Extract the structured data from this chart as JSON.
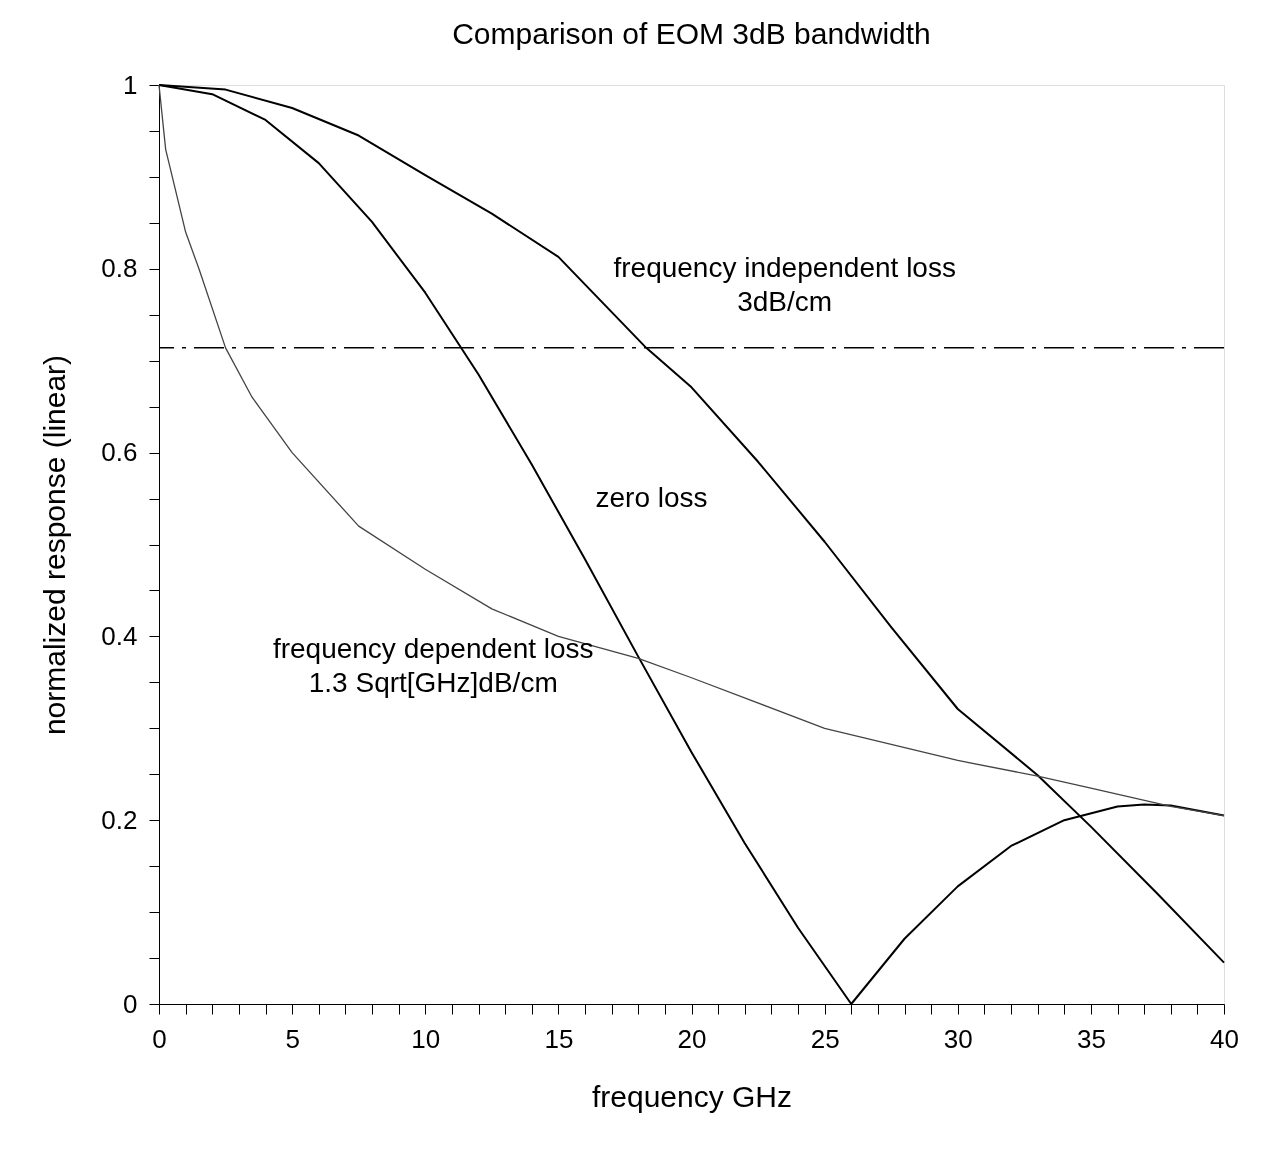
{
  "chart_data": {
    "type": "line",
    "title": "Comparison of EOM 3dB bandwidth",
    "xlabel": "frequency  GHz",
    "ylabel": "normalized response  (linear)",
    "xlim": [
      0,
      40
    ],
    "ylim": [
      0,
      1
    ],
    "xticks": [
      0,
      {
        "value": 1,
        "label": null
      },
      {
        "value": 2,
        "label": null
      },
      {
        "value": 3,
        "label": null
      },
      {
        "value": 4,
        "label": null
      },
      5,
      {
        "value": 6,
        "label": null
      },
      {
        "value": 7,
        "label": null
      },
      {
        "value": 8,
        "label": null
      },
      {
        "value": 9,
        "label": null
      },
      10,
      {
        "value": 11,
        "label": null
      },
      {
        "value": 12,
        "label": null
      },
      {
        "value": 13,
        "label": null
      },
      {
        "value": 14,
        "label": null
      },
      15,
      {
        "value": 16,
        "label": null
      },
      {
        "value": 17,
        "label": null
      },
      {
        "value": 18,
        "label": null
      },
      {
        "value": 19,
        "label": null
      },
      20,
      {
        "value": 21,
        "label": null
      },
      {
        "value": 22,
        "label": null
      },
      {
        "value": 23,
        "label": null
      },
      {
        "value": 24,
        "label": null
      },
      25,
      {
        "value": 26,
        "label": null
      },
      {
        "value": 27,
        "label": null
      },
      {
        "value": 28,
        "label": null
      },
      {
        "value": 29,
        "label": null
      },
      30,
      {
        "value": 31,
        "label": null
      },
      {
        "value": 32,
        "label": null
      },
      {
        "value": 33,
        "label": null
      },
      {
        "value": 34,
        "label": null
      },
      35,
      {
        "value": 36,
        "label": null
      },
      {
        "value": 37,
        "label": null
      },
      {
        "value": 38,
        "label": null
      },
      {
        "value": 39,
        "label": null
      },
      40
    ],
    "yticks": [
      0,
      {
        "value": 0.05,
        "label": null
      },
      {
        "value": 0.1,
        "label": null
      },
      {
        "value": 0.15,
        "label": null
      },
      0.2,
      {
        "value": 0.25,
        "label": null
      },
      {
        "value": 0.3,
        "label": null
      },
      {
        "value": 0.35,
        "label": null
      },
      0.4,
      {
        "value": 0.45,
        "label": null
      },
      {
        "value": 0.5,
        "label": null
      },
      {
        "value": 0.55,
        "label": null
      },
      0.6,
      {
        "value": 0.65,
        "label": null
      },
      {
        "value": 0.7,
        "label": null
      },
      {
        "value": 0.75,
        "label": null
      },
      0.8,
      {
        "value": 0.85,
        "label": null
      },
      {
        "value": 0.9,
        "label": null
      },
      {
        "value": 0.95,
        "label": null
      },
      1
    ],
    "grid": false,
    "legend": false,
    "marker": "none",
    "line_style": "solid",
    "series": [
      {
        "name": "frequency independent loss\n3dB/cm",
        "color": "#000000",
        "x": [
          0,
          2.5,
          5,
          7.5,
          10,
          12.5,
          15,
          18.3,
          20,
          22.5,
          25,
          27.5,
          30,
          33,
          35,
          37.5,
          40
        ],
        "values": [
          1,
          0.995,
          0.975,
          0.945,
          0.902,
          0.86,
          0.813,
          0.714,
          0.671,
          0.59,
          0.503,
          0.41,
          0.321,
          0.249,
          0.193,
          0.12,
          0.045
        ]
      },
      {
        "name": "zero loss",
        "color": "#000000",
        "x": [
          0,
          2,
          4,
          6,
          8,
          10,
          12,
          14,
          16,
          18,
          20,
          22,
          24,
          26,
          28,
          30,
          32,
          34,
          36,
          37,
          38,
          40
        ],
        "values": [
          1,
          0.99,
          0.962,
          0.915,
          0.851,
          0.774,
          0.685,
          0.587,
          0.484,
          0.378,
          0.274,
          0.175,
          0.083,
          0,
          0.071,
          0.128,
          0.172,
          0.2,
          0.215,
          0.217,
          0.216,
          0.205
        ]
      },
      {
        "name": "frequency dependent loss\n1.3 Sqrt[GHz]dB/cm",
        "color": "#444444",
        "x": [
          0,
          0.25,
          0.5,
          1,
          1.5,
          2.5,
          3.5,
          5,
          7.5,
          10,
          12.5,
          15,
          18,
          20,
          25,
          30,
          33,
          35,
          38,
          40
        ],
        "values": [
          1,
          0.93,
          0.9,
          0.84,
          0.8,
          0.714,
          0.66,
          0.6,
          0.52,
          0.473,
          0.43,
          0.4,
          0.376,
          0.355,
          0.3,
          0.265,
          0.248,
          0.235,
          0.215,
          0.205
        ]
      }
    ],
    "ref_lines": [
      {
        "axis": "y",
        "value": 0.714,
        "label": null,
        "line_style": "dashed",
        "color": "#000000"
      }
    ]
  }
}
